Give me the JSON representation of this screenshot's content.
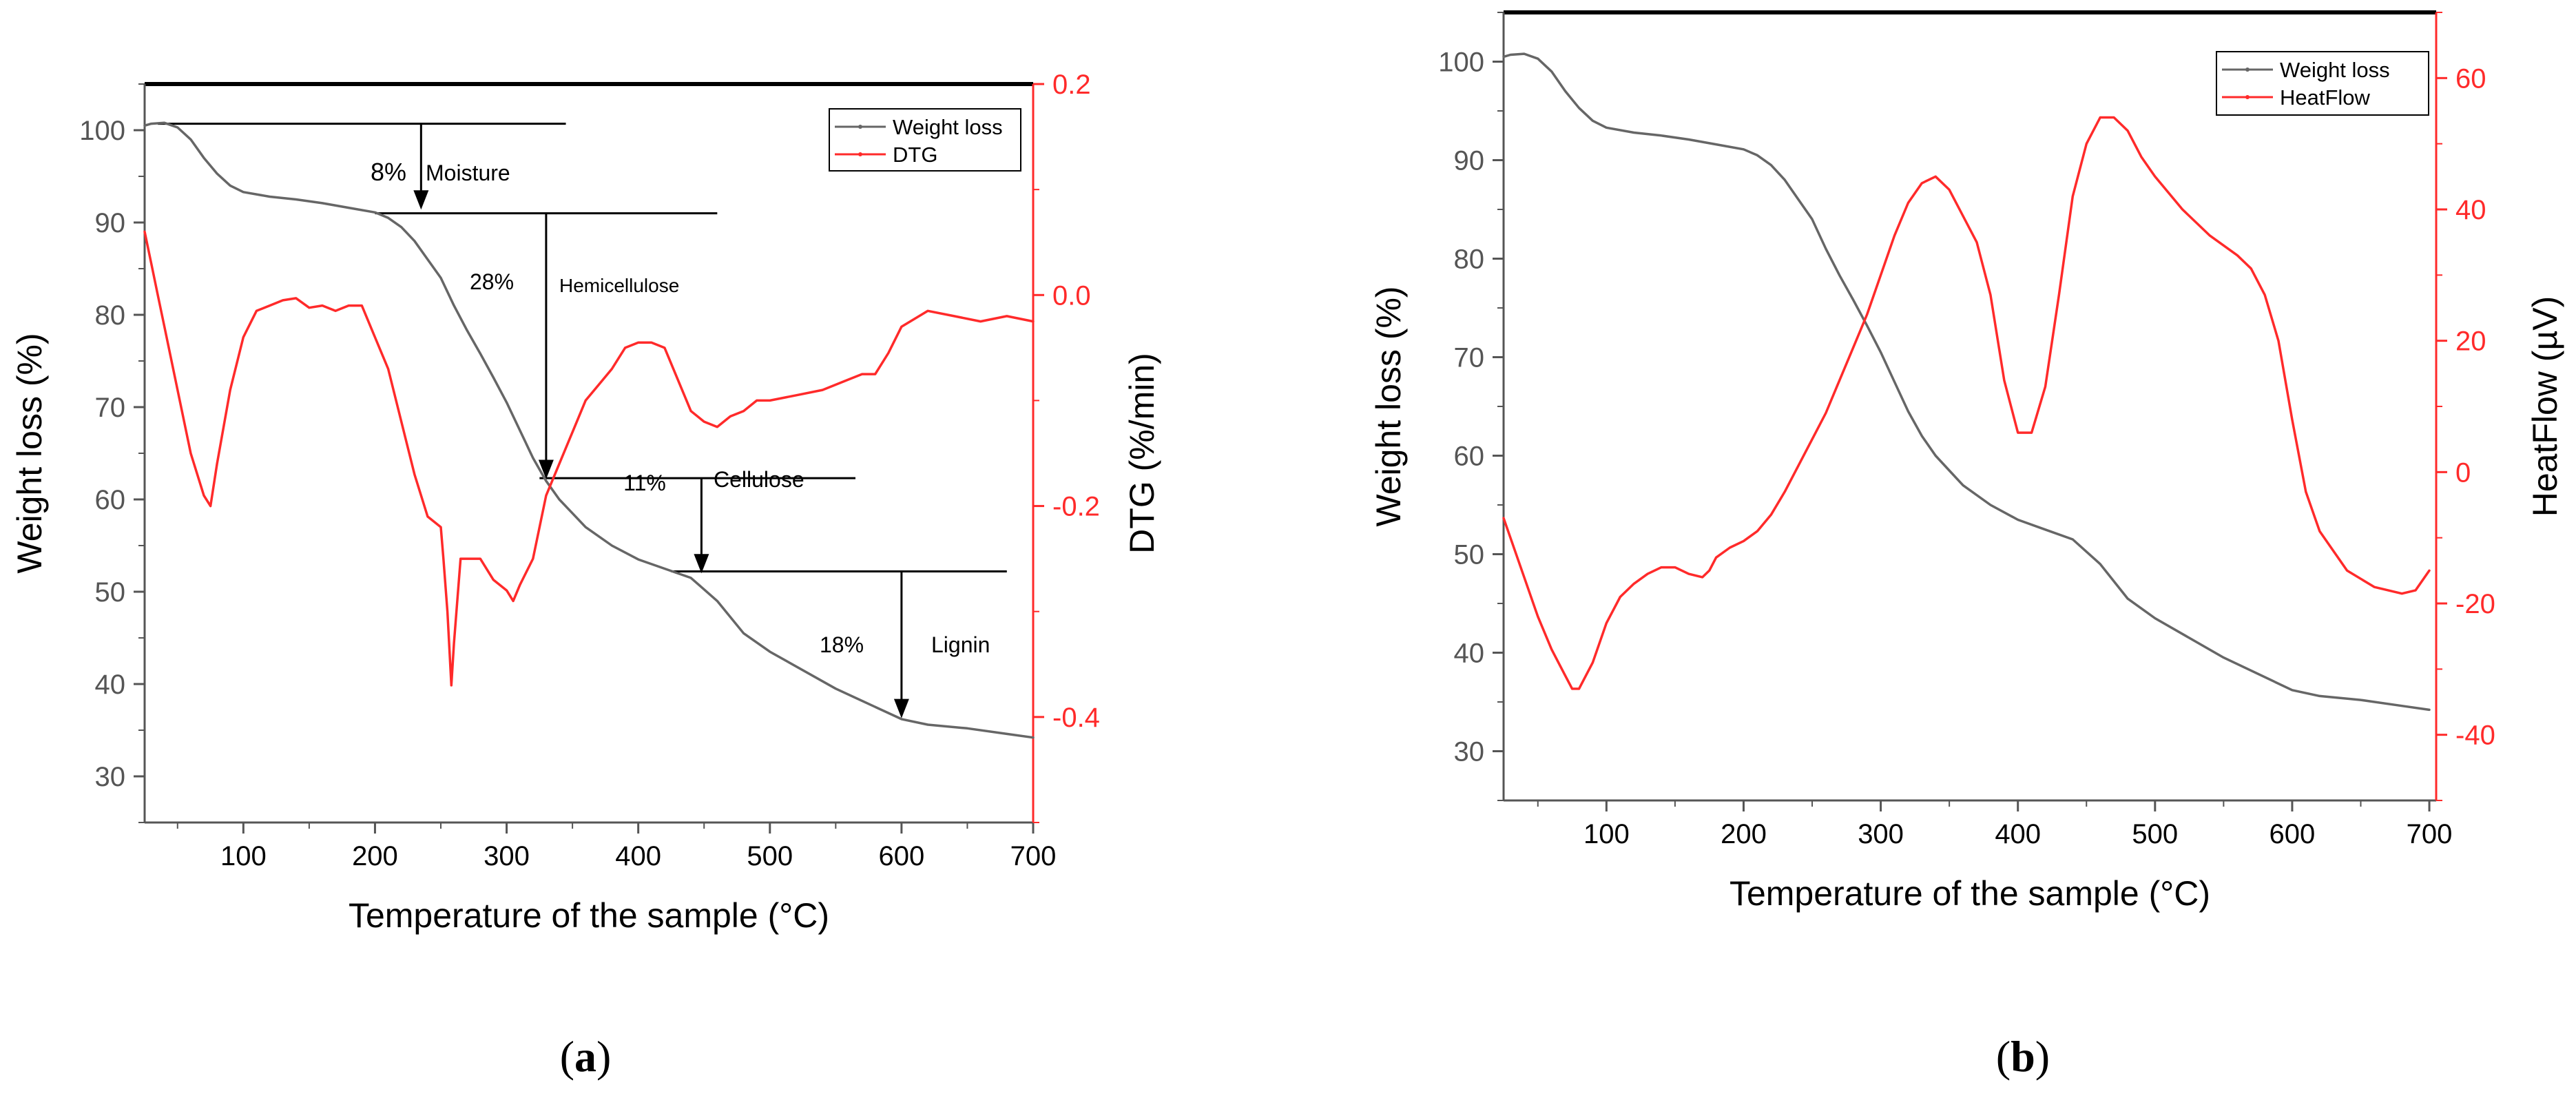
{
  "chart_data": [
    {
      "type": "line",
      "panel_label": "a",
      "xlabel": "Temperature of the sample (°C)",
      "ylabel": "Weight loss (%)",
      "y2label": "DTG (%/min)",
      "xlim": [
        25,
        700
      ],
      "ylim": [
        25,
        105
      ],
      "y2lim": [
        -0.5,
        0.2
      ],
      "xticks": [
        100,
        200,
        300,
        400,
        500,
        600,
        700
      ],
      "yticks": [
        30,
        40,
        50,
        60,
        70,
        80,
        90,
        100
      ],
      "y2ticks": [
        -0.4,
        -0.2,
        0.0,
        0.2
      ],
      "y2ticklabels": [
        "-0.4",
        "-0.2",
        "0.0",
        "0.2"
      ],
      "colors": {
        "left_axis": "#555555",
        "right_axis": "#ff2a2a",
        "weight": "#666666",
        "dtg": "#ff2a2a",
        "annotation": "#000000"
      },
      "legend": {
        "position": "top-right",
        "entries": [
          "Weight loss",
          "DTG"
        ]
      },
      "series": [
        {
          "name": "Weight loss",
          "axis": "left",
          "x": [
            25,
            30,
            40,
            50,
            60,
            70,
            80,
            90,
            100,
            120,
            140,
            160,
            180,
            200,
            210,
            220,
            230,
            240,
            250,
            260,
            270,
            280,
            290,
            300,
            310,
            320,
            330,
            340,
            350,
            360,
            380,
            400,
            420,
            440,
            460,
            480,
            500,
            550,
            600,
            620,
            650,
            680,
            700
          ],
          "y": [
            100.5,
            100.7,
            100.8,
            100.3,
            99,
            97,
            95.3,
            94,
            93.3,
            92.8,
            92.5,
            92.1,
            91.6,
            91.1,
            90.5,
            89.5,
            88,
            86,
            84,
            81,
            78.3,
            75.8,
            73.2,
            70.5,
            67.5,
            64.5,
            62,
            60,
            58.5,
            57,
            55,
            53.5,
            52.5,
            51.5,
            49,
            45.5,
            43.5,
            39.5,
            36.2,
            35.6,
            35.2,
            34.6,
            34.2
          ]
        },
        {
          "name": "DTG",
          "axis": "right",
          "x": [
            25,
            30,
            35,
            40,
            50,
            60,
            70,
            75,
            80,
            90,
            100,
            110,
            120,
            130,
            140,
            150,
            160,
            170,
            180,
            190,
            200,
            210,
            220,
            230,
            240,
            250,
            252,
            255,
            258,
            260,
            265,
            270,
            280,
            290,
            300,
            305,
            310,
            320,
            330,
            340,
            350,
            360,
            370,
            380,
            390,
            400,
            410,
            420,
            430,
            440,
            450,
            460,
            470,
            480,
            490,
            500,
            520,
            540,
            560,
            570,
            580,
            590,
            600,
            620,
            640,
            660,
            680,
            700
          ],
          "y": [
            0.06,
            0.03,
            0.0,
            -0.03,
            -0.09,
            -0.15,
            -0.19,
            -0.2,
            -0.16,
            -0.09,
            -0.04,
            -0.015,
            -0.01,
            -0.005,
            -0.003,
            -0.012,
            -0.01,
            -0.015,
            -0.01,
            -0.01,
            -0.04,
            -0.07,
            -0.12,
            -0.17,
            -0.21,
            -0.22,
            -0.25,
            -0.3,
            -0.37,
            -0.33,
            -0.25,
            -0.25,
            -0.25,
            -0.27,
            -0.28,
            -0.29,
            -0.275,
            -0.25,
            -0.19,
            -0.16,
            -0.13,
            -0.1,
            -0.085,
            -0.07,
            -0.05,
            -0.045,
            -0.045,
            -0.05,
            -0.08,
            -0.11,
            -0.12,
            -0.125,
            -0.115,
            -0.11,
            -0.1,
            -0.1,
            -0.095,
            -0.09,
            -0.08,
            -0.075,
            -0.075,
            -0.055,
            -0.03,
            -0.015,
            -0.02,
            -0.025,
            -0.02,
            -0.025
          ]
        }
      ],
      "annotations": [
        {
          "percent": "8%",
          "label": "Moisture"
        },
        {
          "percent": "28%",
          "label": "Hemicellulose"
        },
        {
          "percent": "11%",
          "label": "Cellulose"
        },
        {
          "percent": "18%",
          "label": "Lignin"
        }
      ],
      "annotation_geometry": [
        {
          "line_from_x": 35,
          "line_to_x": 345,
          "level_y": 100.7,
          "arrow_x": 235,
          "arrow_to_y": 91.4
        },
        {
          "line_from_x": 200,
          "line_to_x": 460,
          "level_y": 91.0,
          "arrow_x": 330,
          "arrow_to_y": 62.2
        },
        {
          "line_from_x": 325,
          "line_to_x": 565,
          "level_y": 62.3,
          "arrow_x": 448,
          "arrow_to_y": 52.0
        },
        {
          "line_from_x": 425,
          "line_to_x": 680,
          "level_y": 52.2,
          "arrow_x": 600,
          "arrow_to_y": 36.3
        }
      ]
    },
    {
      "type": "line",
      "panel_label": "b",
      "xlabel": "Temperature of the sample (°C)",
      "ylabel": "Weight loss (%)",
      "y2label": "HeatFlow (µV)",
      "xlim": [
        25,
        705
      ],
      "ylim": [
        25,
        105
      ],
      "y2lim": [
        -50,
        70
      ],
      "xticks": [
        100,
        200,
        300,
        400,
        500,
        600,
        700
      ],
      "yticks": [
        30,
        40,
        50,
        60,
        70,
        80,
        90,
        100
      ],
      "y2ticks": [
        -40,
        -20,
        0,
        20,
        40,
        60
      ],
      "y2ticklabels": [
        "-40",
        "-20",
        "0",
        "20",
        "40",
        "60"
      ],
      "colors": {
        "left_axis": "#555555",
        "right_axis": "#ff2a2a",
        "weight": "#666666",
        "heatflow": "#ff2a2a"
      },
      "legend": {
        "position": "top-right",
        "entries": [
          "Weight loss",
          "HeatFlow"
        ]
      },
      "series": [
        {
          "name": "Weight loss",
          "axis": "left",
          "x": [
            25,
            30,
            40,
            50,
            60,
            70,
            80,
            90,
            100,
            120,
            140,
            160,
            180,
            200,
            210,
            220,
            230,
            240,
            250,
            260,
            270,
            280,
            290,
            300,
            310,
            320,
            330,
            340,
            350,
            360,
            380,
            400,
            420,
            440,
            460,
            480,
            500,
            550,
            600,
            620,
            650,
            680,
            700
          ],
          "y": [
            100.5,
            100.7,
            100.8,
            100.3,
            99,
            97,
            95.3,
            94,
            93.3,
            92.8,
            92.5,
            92.1,
            91.6,
            91.1,
            90.5,
            89.5,
            88,
            86,
            84,
            81,
            78.3,
            75.8,
            73.2,
            70.5,
            67.5,
            64.5,
            62,
            60,
            58.5,
            57,
            55,
            53.5,
            52.5,
            51.5,
            49,
            45.5,
            43.5,
            39.5,
            36.2,
            35.6,
            35.2,
            34.6,
            34.2
          ]
        },
        {
          "name": "HeatFlow",
          "axis": "right",
          "x": [
            25,
            40,
            50,
            60,
            70,
            75,
            80,
            90,
            100,
            110,
            120,
            130,
            140,
            150,
            160,
            170,
            175,
            180,
            190,
            200,
            210,
            220,
            230,
            240,
            250,
            260,
            270,
            280,
            290,
            300,
            310,
            320,
            330,
            340,
            350,
            360,
            370,
            380,
            390,
            400,
            410,
            420,
            430,
            440,
            450,
            460,
            470,
            480,
            490,
            500,
            520,
            540,
            560,
            570,
            580,
            590,
            600,
            610,
            620,
            640,
            660,
            680,
            690,
            700
          ],
          "y": [
            -7,
            -16,
            -22,
            -27,
            -31,
            -33,
            -33,
            -29,
            -23,
            -19,
            -17,
            -15.5,
            -14.5,
            -14.5,
            -15.5,
            -16,
            -15,
            -13,
            -11.5,
            -10.5,
            -9,
            -6.5,
            -3,
            1,
            5,
            9,
            14,
            19,
            24,
            30,
            36,
            41,
            44,
            45,
            43,
            39,
            35,
            27,
            14,
            6,
            6,
            13,
            27,
            42,
            50,
            54,
            54,
            52,
            48,
            45,
            40,
            36,
            33,
            31,
            27,
            20,
            8,
            -3,
            -9,
            -15,
            -17.5,
            -18.5,
            -18,
            -15
          ]
        }
      ]
    }
  ]
}
